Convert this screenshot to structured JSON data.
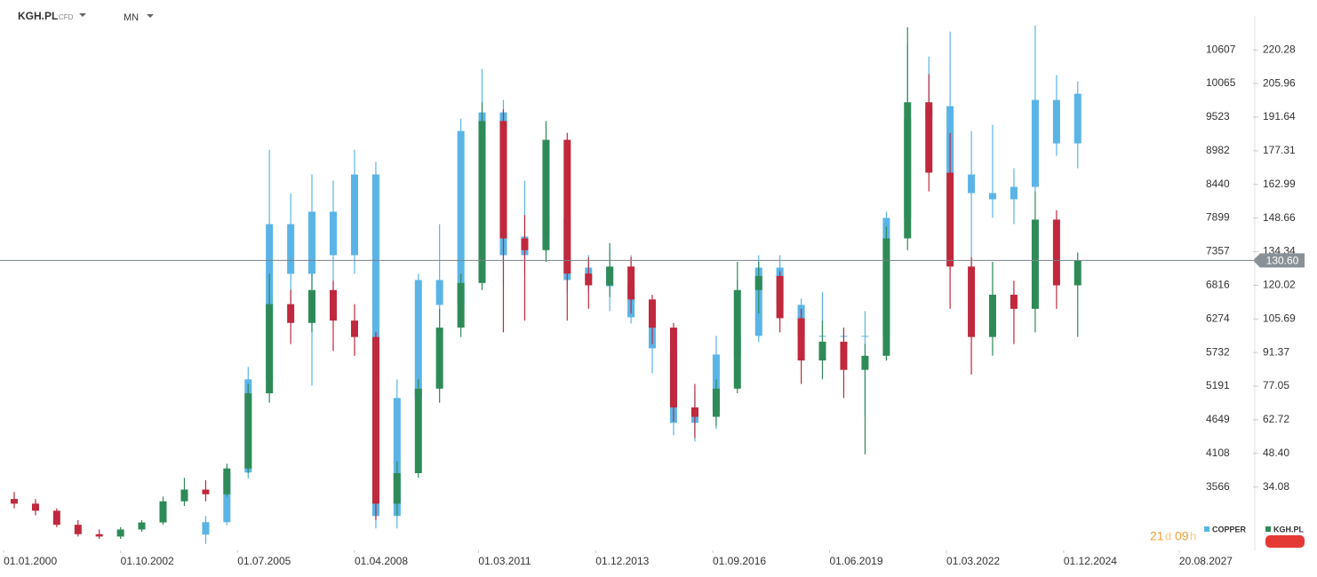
{
  "header": {
    "symbol": "KGH.PL",
    "kind": "CFD",
    "interval": "MN"
  },
  "countdown": {
    "days": "21",
    "days_unit": "d",
    "hours": "09",
    "hours_unit": "h"
  },
  "chart_data": {
    "type": "candlestick",
    "xlim": [
      "01.12.1999",
      "15.05.2029"
    ],
    "xticks": [
      "01.01.2000",
      "01.10.2002",
      "01.07.2005",
      "01.04.2008",
      "01.03.2011",
      "01.12.2013",
      "01.09.2016",
      "01.06.2019",
      "01.03.2022",
      "01.12.2024",
      "20.08.2027"
    ],
    "ylim": [
      7.1,
      234.0
    ],
    "yticks": [
      220.28,
      205.96,
      191.64,
      177.31,
      162.99,
      148.66,
      134.34,
      120.02,
      105.69,
      91.37,
      77.05,
      62.72,
      {
        "value": 48.4,
        "label": "48.40"
      },
      34.08
    ],
    "y2lim": [
      2546,
      11124
    ],
    "y2ticks": [
      10607,
      10065,
      9523,
      8982,
      8440,
      7899,
      7357,
      6816,
      6274,
      5732,
      5191,
      4649,
      4108,
      3566
    ],
    "grid": false,
    "last_price": {
      "value": 130.6,
      "label": "130.60"
    },
    "series": [
      {
        "name": "COPPER",
        "axis": "y2",
        "color": "#5ab4e6",
        "x": [
          "01.10.2004",
          "01.04.2005",
          "01.10.2005",
          "01.04.2006",
          "01.10.2006",
          "01.04.2007",
          "01.10.2007",
          "01.04.2008",
          "01.10.2008",
          "01.04.2009",
          "01.10.2009",
          "01.04.2010",
          "01.10.2010",
          "01.04.2011",
          "01.10.2011",
          "01.04.2012",
          "01.10.2012",
          "01.04.2013",
          "01.10.2013",
          "01.04.2014",
          "01.10.2014",
          "01.04.2015",
          "01.10.2015",
          "01.04.2016",
          "01.10.2016",
          "01.04.2017",
          "01.10.2017",
          "01.04.2018",
          "01.10.2018",
          "01.04.2019",
          "01.10.2019",
          "01.04.2020",
          "01.10.2020",
          "01.04.2021",
          "01.10.2021",
          "01.04.2022",
          "01.10.2022",
          "01.04.2023",
          "01.10.2023",
          "01.04.2024",
          "01.10.2024",
          "01.04.2025"
        ],
        "open": [
          2800,
          3000,
          3800,
          5300,
          7800,
          7000,
          8000,
          7300,
          8600,
          3100,
          5000,
          6900,
          6500,
          9300,
          9600,
          7300,
          7600,
          7900,
          6900,
          7100,
          6800,
          6300,
          5800,
          4600,
          4800,
          5700,
          6000,
          7100,
          6500,
          6000,
          6000,
          6000,
          6000,
          7900,
          9500,
          9700,
          8600,
          8300,
          8200,
          8400,
          9800,
          9100
        ],
        "high": [
          3100,
          3900,
          5500,
          9000,
          8300,
          8600,
          8500,
          9000,
          8800,
          5300,
          7000,
          7800,
          9500,
          10300,
          9800,
          8500,
          8400,
          8300,
          7300,
          7400,
          7300,
          6400,
          6000,
          5100,
          6000,
          6900,
          7300,
          7300,
          6600,
          6700,
          6100,
          6400,
          8000,
          10700,
          10500,
          10900,
          9300,
          9400,
          8700,
          11000,
          10200,
          10100
        ],
        "low": [
          2650,
          2950,
          3700,
          5200,
          6500,
          5200,
          6600,
          7000,
          2900,
          2900,
          4800,
          5800,
          6400,
          8800,
          6800,
          7000,
          7300,
          6700,
          6700,
          6400,
          6200,
          5400,
          4400,
          4300,
          4500,
          5500,
          5900,
          6400,
          5700,
          5800,
          5500,
          4700,
          5900,
          7800,
          8900,
          8400,
          7000,
          7900,
          7800,
          8300,
          8900,
          8700
        ],
        "close": [
          3000,
          3800,
          5300,
          7800,
          7000,
          8000,
          7300,
          8600,
          3100,
          5000,
          6900,
          6500,
          9300,
          9600,
          7300,
          7600,
          7900,
          6900,
          7100,
          6800,
          6300,
          5800,
          4600,
          4800,
          5700,
          6000,
          7100,
          6500,
          6000,
          6000,
          6000,
          6000,
          7900,
          9500,
          9700,
          8600,
          8300,
          8200,
          8400,
          9800,
          9100,
          9900
        ]
      },
      {
        "name": "KGH.PL",
        "color": "#2e8b57",
        "down_color": "#c0283d",
        "x": [
          "01.04.2000",
          "01.10.2000",
          "01.04.2001",
          "01.10.2001",
          "01.04.2002",
          "01.10.2002",
          "01.04.2003",
          "01.10.2003",
          "01.04.2004",
          "01.10.2004",
          "01.04.2005",
          "01.10.2005",
          "01.04.2006",
          "01.10.2006",
          "01.04.2007",
          "01.10.2007",
          "01.04.2008",
          "01.10.2008",
          "01.04.2009",
          "01.10.2009",
          "01.04.2010",
          "01.10.2010",
          "01.04.2011",
          "01.10.2011",
          "01.04.2012",
          "01.10.2012",
          "01.04.2013",
          "01.10.2013",
          "01.04.2014",
          "01.10.2014",
          "01.04.2015",
          "01.10.2015",
          "01.04.2016",
          "01.10.2016",
          "01.04.2017",
          "01.10.2017",
          "01.04.2018",
          "01.10.2018",
          "01.04.2019",
          "01.10.2019",
          "01.04.2020",
          "01.10.2020",
          "01.04.2021",
          "01.10.2021",
          "01.04.2022",
          "01.10.2022",
          "01.04.2023",
          "01.10.2023",
          "01.04.2024",
          "01.10.2024",
          "01.04.2025"
        ],
        "open": [
          29,
          27,
          24,
          18,
          14,
          13,
          16,
          19,
          28,
          33,
          31,
          42,
          74,
          112,
          104,
          118,
          105,
          98,
          27,
          40,
          76,
          102,
          121,
          190,
          140,
          135,
          182,
          125,
          120,
          128,
          114,
          102,
          68,
          64,
          76,
          118,
          124,
          106,
          88,
          96,
          84,
          90,
          140,
          198,
          168,
          128,
          98,
          116,
          110,
          148,
          120
        ],
        "high": [
          32,
          29,
          25,
          20,
          16,
          17,
          20,
          30,
          38,
          37,
          44,
          78,
          125,
          118,
          125,
          122,
          112,
          100,
          45,
          80,
          110,
          125,
          198,
          195,
          150,
          190,
          185,
          132,
          138,
          132,
          116,
          104,
          78,
          80,
          130,
          130,
          126,
          110,
          105,
          102,
          95,
          145,
          230,
          210,
          185,
          132,
          130,
          122,
          160,
          152,
          134
        ],
        "low": [
          25,
          22,
          17,
          13,
          12,
          12,
          15,
          18,
          26,
          28,
          30,
          40,
          70,
          95,
          100,
          92,
          90,
          20,
          22,
          38,
          70,
          98,
          118,
          100,
          105,
          130,
          105,
          110,
          115,
          108,
          95,
          62,
          55,
          60,
          74,
          108,
          100,
          78,
          80,
          72,
          48,
          88,
          135,
          160,
          110,
          82,
          90,
          95,
          100,
          110,
          98
        ],
        "close": [
          27,
          24,
          18,
          14,
          13,
          16,
          19,
          28,
          33,
          31,
          42,
          74,
          112,
          104,
          118,
          105,
          98,
          27,
          40,
          76,
          102,
          121,
          190,
          140,
          135,
          182,
          125,
          120,
          128,
          114,
          102,
          68,
          64,
          76,
          118,
          124,
          106,
          88,
          96,
          84,
          90,
          140,
          198,
          168,
          128,
          98,
          116,
          110,
          148,
          120,
          130.6
        ]
      }
    ]
  }
}
